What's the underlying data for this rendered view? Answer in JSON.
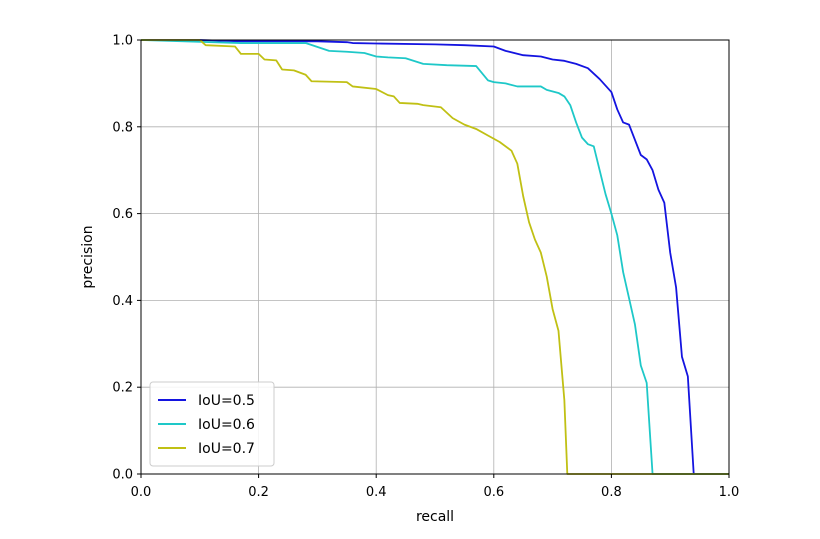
{
  "chart_data": {
    "type": "line",
    "xlabel": "recall",
    "ylabel": "precision",
    "xlim": [
      0.0,
      1.0
    ],
    "ylim": [
      0.0,
      1.0
    ],
    "xticks": [
      "0.0",
      "0.2",
      "0.4",
      "0.6",
      "0.8",
      "1.0"
    ],
    "yticks": [
      "0.0",
      "0.2",
      "0.4",
      "0.6",
      "0.8",
      "1.0"
    ],
    "grid": true,
    "legend_position": "lower-left",
    "series": [
      {
        "name": "IoU=0.5",
        "color": "#1414e0",
        "points": [
          [
            0.0,
            1.0
          ],
          [
            0.1,
            1.0
          ],
          [
            0.17,
            0.997
          ],
          [
            0.3,
            0.997
          ],
          [
            0.35,
            0.995
          ],
          [
            0.36,
            0.993
          ],
          [
            0.4,
            0.992
          ],
          [
            0.5,
            0.99
          ],
          [
            0.55,
            0.988
          ],
          [
            0.6,
            0.985
          ],
          [
            0.62,
            0.975
          ],
          [
            0.65,
            0.965
          ],
          [
            0.68,
            0.962
          ],
          [
            0.7,
            0.955
          ],
          [
            0.72,
            0.952
          ],
          [
            0.74,
            0.945
          ],
          [
            0.76,
            0.935
          ],
          [
            0.78,
            0.91
          ],
          [
            0.8,
            0.88
          ],
          [
            0.81,
            0.84
          ],
          [
            0.82,
            0.81
          ],
          [
            0.83,
            0.805
          ],
          [
            0.84,
            0.77
          ],
          [
            0.85,
            0.735
          ],
          [
            0.86,
            0.725
          ],
          [
            0.87,
            0.7
          ],
          [
            0.88,
            0.655
          ],
          [
            0.89,
            0.625
          ],
          [
            0.9,
            0.51
          ],
          [
            0.91,
            0.43
          ],
          [
            0.92,
            0.27
          ],
          [
            0.93,
            0.225
          ],
          [
            0.94,
            0.0
          ],
          [
            1.0,
            0.0
          ]
        ]
      },
      {
        "name": "IoU=0.6",
        "color": "#1ec8c8",
        "points": [
          [
            0.0,
            1.0
          ],
          [
            0.17,
            0.993
          ],
          [
            0.28,
            0.993
          ],
          [
            0.32,
            0.975
          ],
          [
            0.35,
            0.973
          ],
          [
            0.38,
            0.97
          ],
          [
            0.4,
            0.962
          ],
          [
            0.42,
            0.96
          ],
          [
            0.45,
            0.958
          ],
          [
            0.48,
            0.945
          ],
          [
            0.52,
            0.942
          ],
          [
            0.57,
            0.94
          ],
          [
            0.59,
            0.907
          ],
          [
            0.6,
            0.903
          ],
          [
            0.62,
            0.9
          ],
          [
            0.64,
            0.893
          ],
          [
            0.68,
            0.893
          ],
          [
            0.69,
            0.885
          ],
          [
            0.71,
            0.878
          ],
          [
            0.72,
            0.87
          ],
          [
            0.73,
            0.85
          ],
          [
            0.74,
            0.81
          ],
          [
            0.75,
            0.775
          ],
          [
            0.76,
            0.76
          ],
          [
            0.77,
            0.755
          ],
          [
            0.78,
            0.7
          ],
          [
            0.79,
            0.645
          ],
          [
            0.8,
            0.6
          ],
          [
            0.81,
            0.55
          ],
          [
            0.82,
            0.465
          ],
          [
            0.83,
            0.405
          ],
          [
            0.84,
            0.345
          ],
          [
            0.85,
            0.25
          ],
          [
            0.86,
            0.21
          ],
          [
            0.87,
            0.0
          ],
          [
            1.0,
            0.0
          ]
        ]
      },
      {
        "name": "IoU=0.7",
        "color": "#c0c014",
        "points": [
          [
            0.0,
            1.0
          ],
          [
            0.1,
            1.0
          ],
          [
            0.11,
            0.988
          ],
          [
            0.16,
            0.985
          ],
          [
            0.17,
            0.968
          ],
          [
            0.2,
            0.968
          ],
          [
            0.21,
            0.955
          ],
          [
            0.23,
            0.953
          ],
          [
            0.24,
            0.932
          ],
          [
            0.26,
            0.93
          ],
          [
            0.28,
            0.92
          ],
          [
            0.29,
            0.905
          ],
          [
            0.35,
            0.903
          ],
          [
            0.36,
            0.893
          ],
          [
            0.4,
            0.887
          ],
          [
            0.42,
            0.873
          ],
          [
            0.43,
            0.87
          ],
          [
            0.44,
            0.855
          ],
          [
            0.47,
            0.853
          ],
          [
            0.48,
            0.85
          ],
          [
            0.51,
            0.845
          ],
          [
            0.53,
            0.82
          ],
          [
            0.55,
            0.805
          ],
          [
            0.57,
            0.795
          ],
          [
            0.59,
            0.78
          ],
          [
            0.61,
            0.765
          ],
          [
            0.63,
            0.745
          ],
          [
            0.64,
            0.715
          ],
          [
            0.65,
            0.64
          ],
          [
            0.66,
            0.58
          ],
          [
            0.67,
            0.54
          ],
          [
            0.68,
            0.51
          ],
          [
            0.69,
            0.455
          ],
          [
            0.7,
            0.38
          ],
          [
            0.71,
            0.33
          ],
          [
            0.72,
            0.17
          ],
          [
            0.725,
            0.0
          ],
          [
            1.0,
            0.0
          ]
        ]
      }
    ]
  }
}
